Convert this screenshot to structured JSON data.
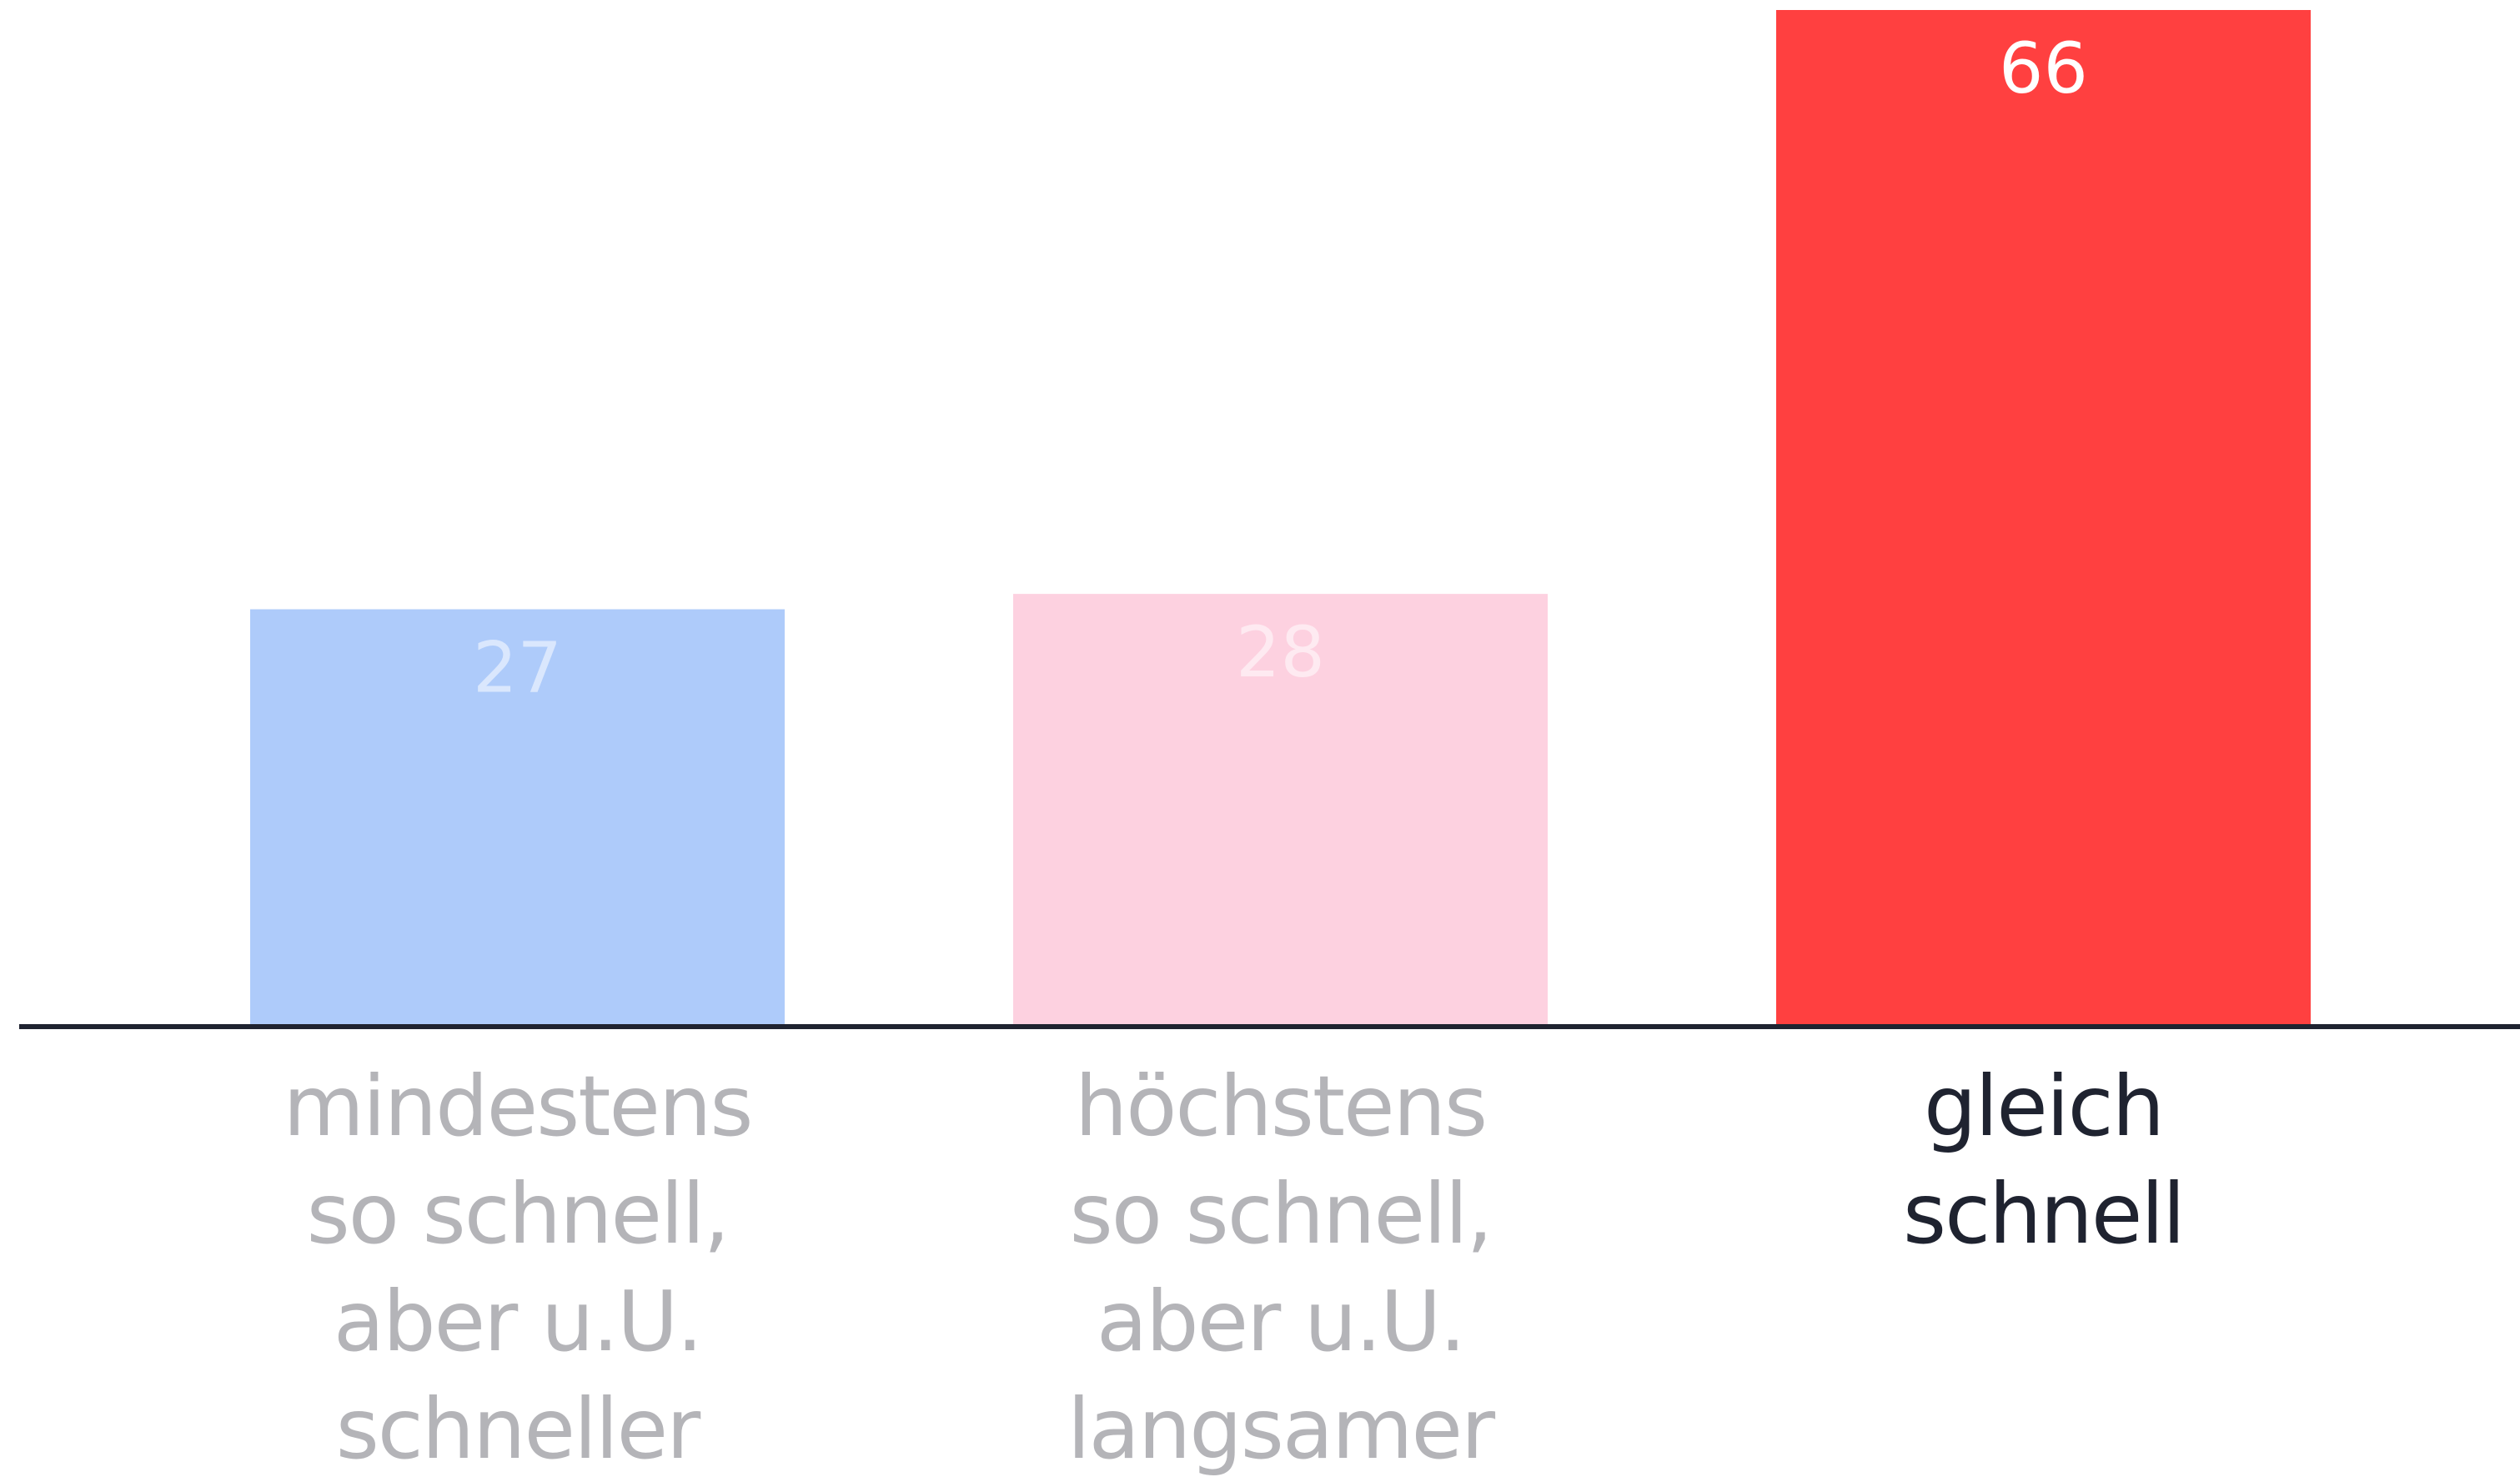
{
  "chart_data": {
    "type": "bar",
    "categories": [
      "mindestens\nso schnell,\naber u.U.\nschneller",
      "höchstens\nso schnell,\naber u.U.\nlangsamer",
      "gleich\nschnell"
    ],
    "values": [
      27,
      28,
      66
    ],
    "colors": [
      "#aecbfa",
      "#fdd1e0",
      "#ff4040"
    ],
    "label_colors": [
      "#b4b4b8",
      "#b4b4b8",
      "#1f2330"
    ],
    "value_label_colors": [
      "rgba(255,255,255,0.55)",
      "rgba(255,255,255,0.55)",
      "#ffffff"
    ]
  }
}
